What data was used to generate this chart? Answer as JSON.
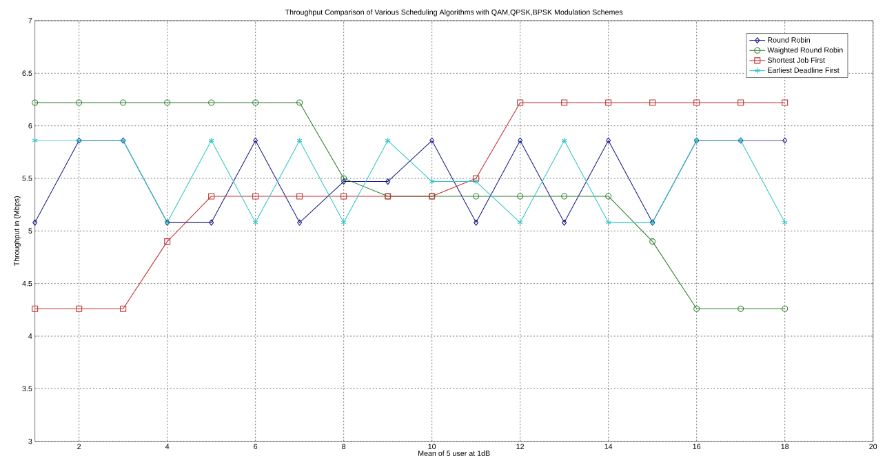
{
  "chart_data": {
    "type": "line",
    "title": "Throughput Comparison of Various Scheduling Algorithms with QAM,QPSK,BPSK Modulation Schemes",
    "xlabel": "Mean of 5 user at 1dB",
    "ylabel": "Throughput in (Mbps)",
    "x": [
      1,
      2,
      3,
      4,
      5,
      6,
      7,
      8,
      9,
      10,
      11,
      12,
      13,
      14,
      15,
      16,
      17,
      18
    ],
    "series": [
      {
        "name": "Round Robin",
        "color": "#1c1c8c",
        "marker": "diamond",
        "values": [
          5.08,
          5.86,
          5.86,
          5.08,
          5.08,
          5.86,
          5.08,
          5.47,
          5.47,
          5.86,
          5.08,
          5.86,
          5.08,
          5.86,
          5.08,
          5.86,
          5.86,
          5.86
        ]
      },
      {
        "name": "Waighted Round Robin",
        "color": "#2e7d2e",
        "marker": "circle",
        "values": [
          6.22,
          6.22,
          6.22,
          6.22,
          6.22,
          6.22,
          6.22,
          5.5,
          5.33,
          5.33,
          5.33,
          5.33,
          5.33,
          5.33,
          4.9,
          4.26,
          4.26,
          4.26
        ]
      },
      {
        "name": "Shortest Job First",
        "color": "#c03030",
        "marker": "square",
        "values": [
          4.26,
          4.26,
          4.26,
          4.9,
          5.33,
          5.33,
          5.33,
          5.33,
          5.33,
          5.33,
          5.5,
          6.22,
          6.22,
          6.22,
          6.22,
          6.22,
          6.22,
          6.22
        ]
      },
      {
        "name": "Earliest Deadline First",
        "color": "#33c6c6",
        "marker": "cross",
        "values": [
          5.86,
          5.86,
          5.86,
          5.08,
          5.86,
          5.08,
          5.86,
          5.08,
          5.86,
          5.47,
          5.47,
          5.08,
          5.86,
          5.08,
          5.08,
          5.86,
          5.86,
          5.08
        ]
      }
    ],
    "xlim": [
      1,
      20
    ],
    "ylim": [
      3,
      7
    ],
    "xticks": [
      2,
      4,
      6,
      8,
      10,
      12,
      14,
      16,
      18,
      20
    ],
    "yticks": [
      3,
      3.5,
      4,
      4.5,
      5,
      5.5,
      6,
      6.5,
      7
    ],
    "grid": true,
    "legend": "top right",
    "line_style": "solid"
  }
}
